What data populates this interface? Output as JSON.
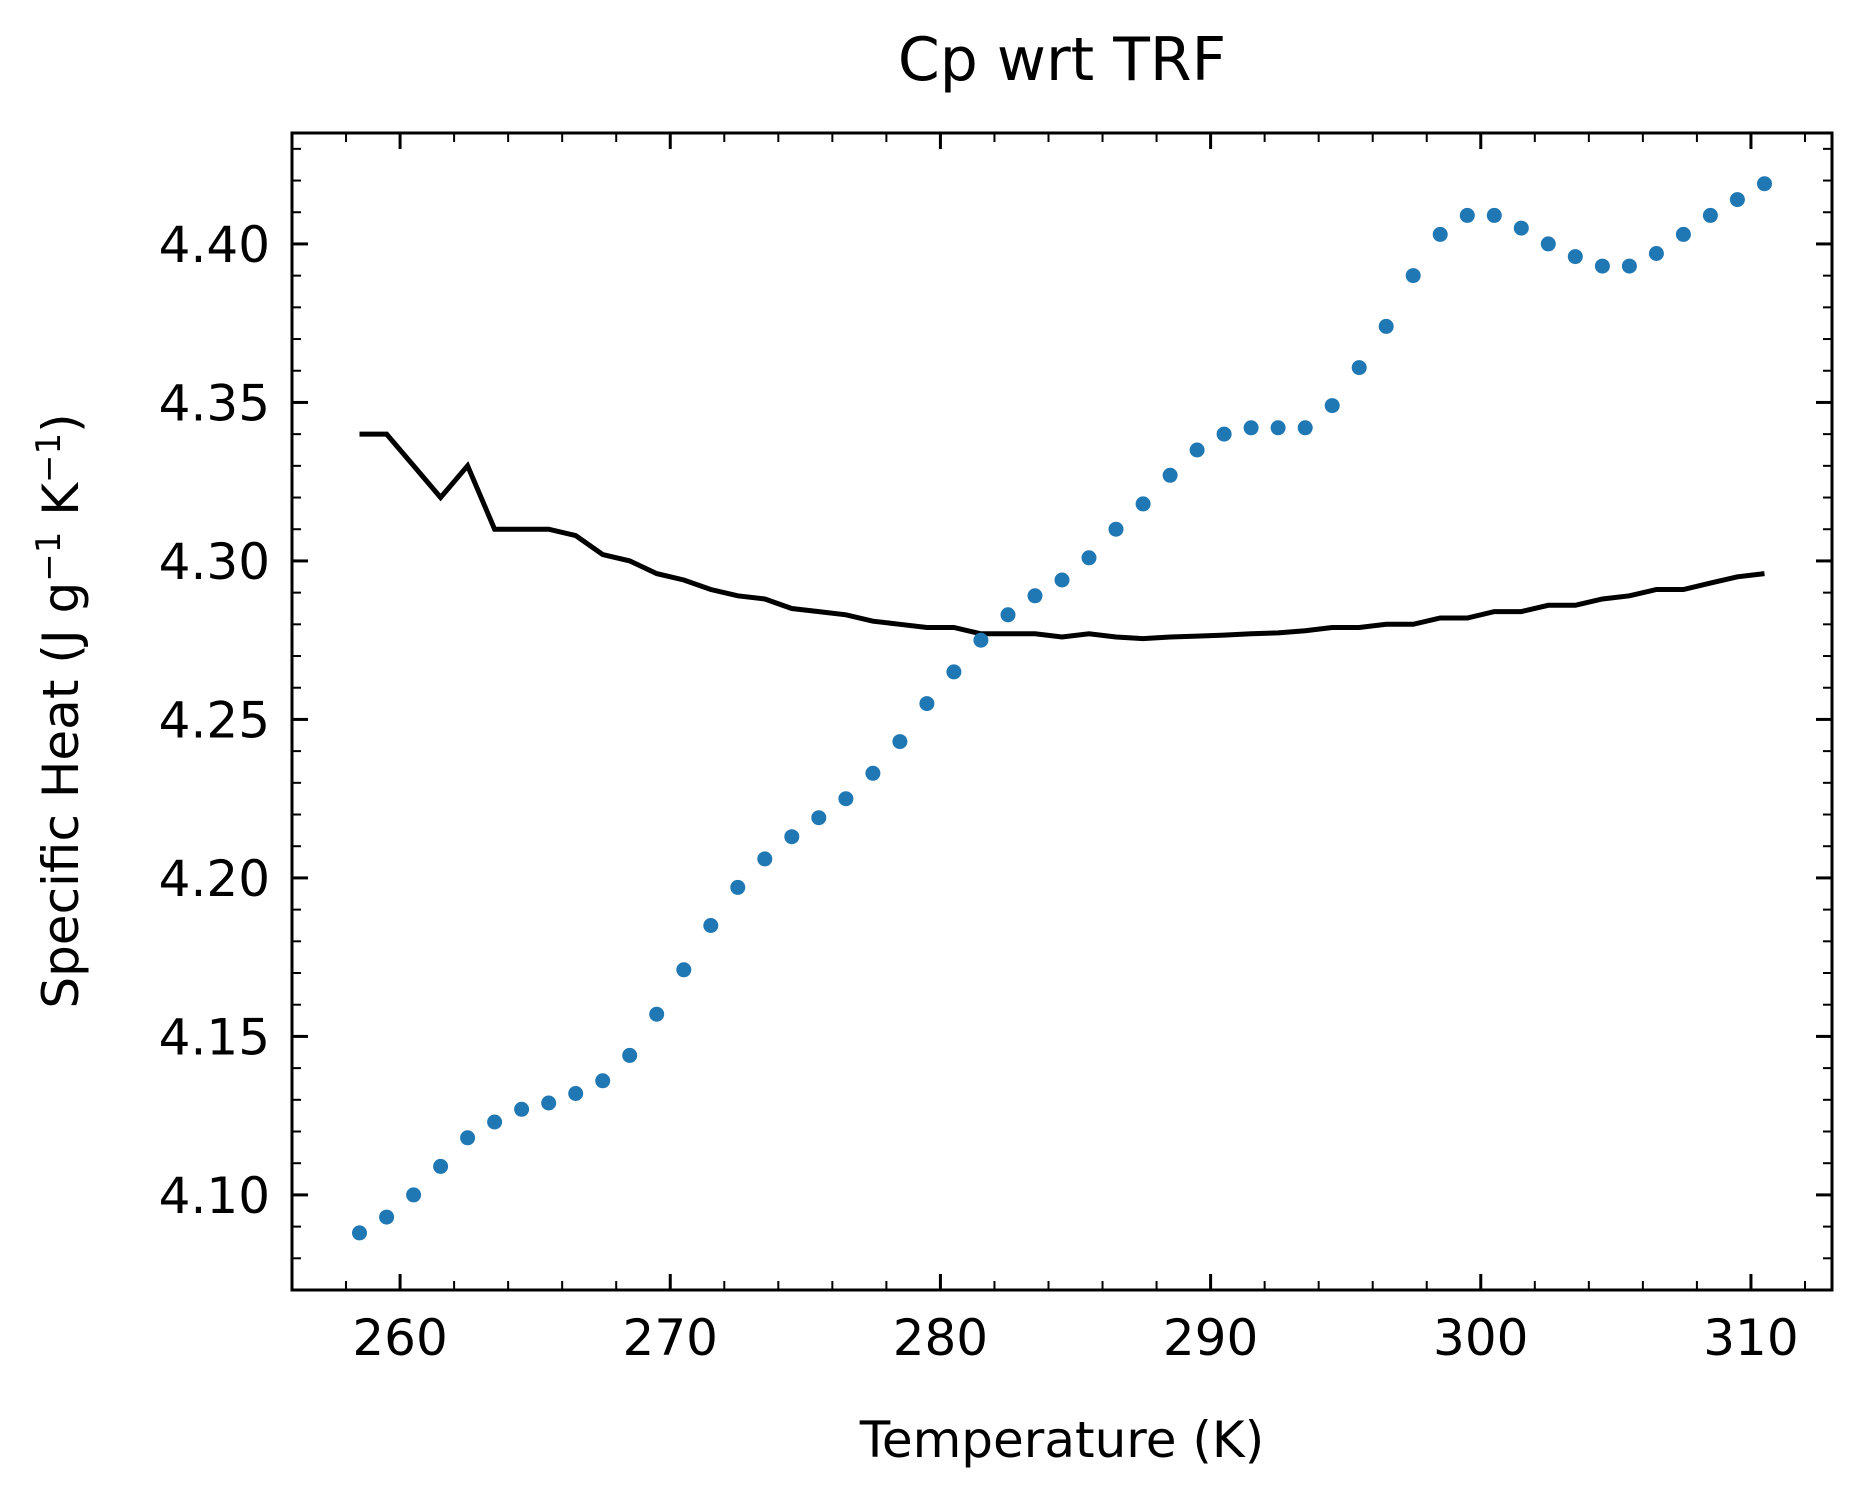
{
  "chart_data": {
    "type": "scatter",
    "title": "Cp wrt TRF",
    "xlabel": "Temperature (K)",
    "ylabel_parts": {
      "base": "Specific Heat (J g",
      "exp1": "−1",
      "mid": " K",
      "exp2": "−1",
      "end": ")"
    },
    "xlim": [
      256,
      313
    ],
    "ylim": [
      4.07,
      4.435
    ],
    "xticks": [
      260,
      270,
      280,
      290,
      300,
      310
    ],
    "xtick_labels": [
      "260",
      "270",
      "280",
      "290",
      "300",
      "310"
    ],
    "yticks": [
      4.1,
      4.15,
      4.2,
      4.25,
      4.3,
      4.35,
      4.4
    ],
    "ytick_labels": [
      "4.10",
      "4.15",
      "4.20",
      "4.25",
      "4.30",
      "4.35",
      "4.40"
    ],
    "grid": false,
    "series": [
      {
        "kind": "line",
        "color": "#000000",
        "x": [
          258.5,
          259.5,
          260.5,
          261.5,
          262.5,
          263.5,
          264.5,
          265.5,
          266.5,
          267.5,
          268.5,
          269.5,
          270.5,
          271.5,
          272.5,
          273.5,
          274.5,
          275.5,
          276.5,
          277.5,
          278.5,
          279.5,
          280.5,
          281.5,
          282.5,
          283.5,
          284.5,
          285.5,
          286.5,
          287.5,
          288.5,
          289.5,
          290.5,
          291.5,
          292.5,
          293.5,
          294.5,
          295.5,
          296.5,
          297.5,
          298.5,
          299.5,
          300.5,
          301.5,
          302.5,
          303.5,
          304.5,
          305.5,
          306.5,
          307.5,
          308.5,
          309.5,
          310.5
        ],
        "y": [
          4.34,
          4.34,
          4.33,
          4.32,
          4.33,
          4.31,
          4.31,
          4.31,
          4.308,
          4.302,
          4.3,
          4.296,
          4.294,
          4.291,
          4.289,
          4.288,
          4.285,
          4.284,
          4.283,
          4.281,
          4.28,
          4.279,
          4.279,
          4.277,
          4.277,
          4.277,
          4.276,
          4.277,
          4.276,
          4.2755,
          4.276,
          4.2763,
          4.2766,
          4.277,
          4.2773,
          4.278,
          4.279,
          4.279,
          4.28,
          4.28,
          4.282,
          4.282,
          4.284,
          4.284,
          4.286,
          4.286,
          4.288,
          4.289,
          4.291,
          4.291,
          4.293,
          4.295,
          4.296
        ]
      },
      {
        "kind": "scatter",
        "color": "#1f77b4",
        "x": [
          258.5,
          259.5,
          260.5,
          261.5,
          262.5,
          263.5,
          264.5,
          265.5,
          266.5,
          267.5,
          268.5,
          269.5,
          270.5,
          271.5,
          272.5,
          273.5,
          274.5,
          275.5,
          276.5,
          277.5,
          278.5,
          279.5,
          280.5,
          281.5,
          282.5,
          283.5,
          284.5,
          285.5,
          286.5,
          287.5,
          288.5,
          289.5,
          290.5,
          291.5,
          292.5,
          293.5,
          294.5,
          295.5,
          296.5,
          297.5,
          298.5,
          299.5,
          300.5,
          301.5,
          302.5,
          303.5,
          304.5,
          305.5,
          306.5,
          307.5,
          308.5,
          309.5,
          310.5
        ],
        "y": [
          4.088,
          4.093,
          4.1,
          4.109,
          4.118,
          4.123,
          4.127,
          4.129,
          4.132,
          4.136,
          4.144,
          4.157,
          4.171,
          4.185,
          4.197,
          4.206,
          4.213,
          4.219,
          4.225,
          4.233,
          4.243,
          4.255,
          4.265,
          4.275,
          4.283,
          4.289,
          4.294,
          4.301,
          4.31,
          4.318,
          4.327,
          4.335,
          4.34,
          4.342,
          4.342,
          4.342,
          4.349,
          4.361,
          4.374,
          4.39,
          4.403,
          4.409,
          4.409,
          4.405,
          4.4,
          4.396,
          4.393,
          4.393,
          4.397,
          4.403,
          4.409,
          4.414,
          4.419
        ]
      }
    ]
  }
}
